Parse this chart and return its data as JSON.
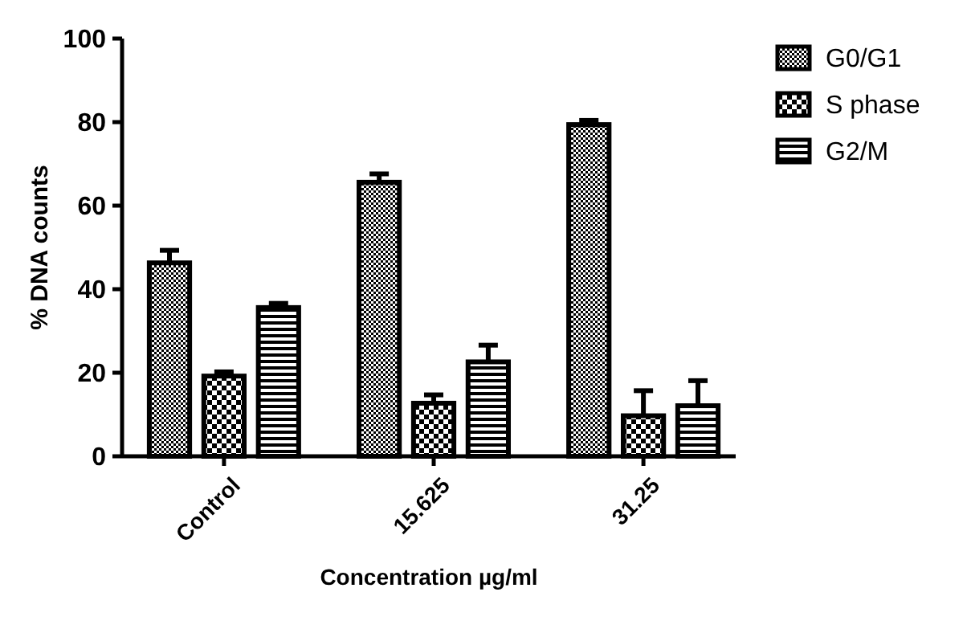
{
  "chart_data": {
    "type": "bar",
    "xlabel": "Concentration µg/ml",
    "ylabel": "% DNA counts",
    "categories": [
      "Control",
      "15.625",
      "31.25"
    ],
    "series": [
      {
        "name": "G0/G1",
        "color": "#000000",
        "values": [
          46.3,
          65.6,
          79.4
        ],
        "errors": [
          3,
          2,
          1
        ]
      },
      {
        "name": "S phase",
        "color": "#000000",
        "values": [
          19.2,
          12.7,
          9.7
        ],
        "errors": [
          1,
          2,
          6
        ]
      },
      {
        "name": "G2/M",
        "color": "#000000",
        "values": [
          35.6,
          22.6,
          12.1
        ],
        "errors": [
          1,
          4,
          6
        ]
      }
    ],
    "ylim": [
      0,
      100
    ],
    "yticks": [
      0,
      20,
      40,
      60,
      80,
      100
    ],
    "legend": "top right",
    "grid": false
  }
}
